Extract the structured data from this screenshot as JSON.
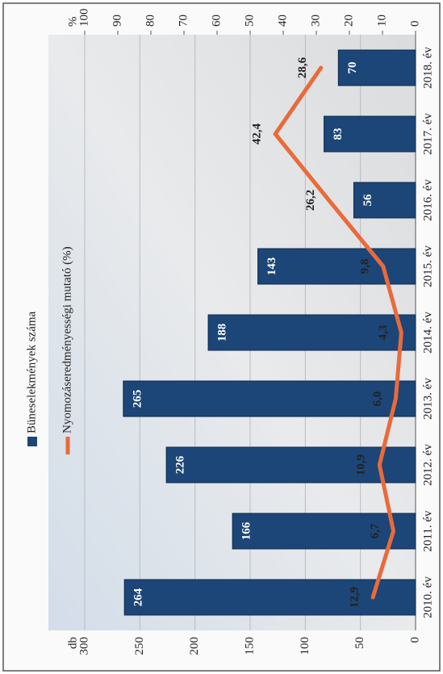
{
  "chart_data": {
    "type": "bar-line",
    "categories": [
      "2010. év",
      "2011. év",
      "2012. év",
      "2013. év",
      "2014. év",
      "2015. év",
      "2016. év",
      "2017. év",
      "2018. év"
    ],
    "series": [
      {
        "name": "Büneselekmények száma",
        "color": "#1c4677",
        "values": [
          264,
          166,
          226,
          265,
          188,
          143,
          56,
          83,
          70
        ]
      },
      {
        "name": "Nyomozáseredményességi mutató (%)",
        "color": "#ea6a3a",
        "axis": "y2",
        "values": [
          12.9,
          6.7,
          10.9,
          6.0,
          4.3,
          9.8,
          26.2,
          42.4,
          28.6
        ],
        "value_labels": [
          "12,9",
          "6,7",
          "10,9",
          "6,0",
          "4,3",
          "9,8",
          "26,2",
          "42,4",
          "28,6"
        ]
      }
    ],
    "ylabel": "db",
    "y2label": "%",
    "ylim": [
      0,
      300
    ],
    "yticks": [
      0,
      50,
      100,
      150,
      200,
      250,
      300
    ],
    "y2lim": [
      0,
      100
    ],
    "y2ticks": [
      0,
      10,
      20,
      30,
      40,
      50,
      60,
      70,
      80,
      90,
      100
    ],
    "grid": true
  }
}
